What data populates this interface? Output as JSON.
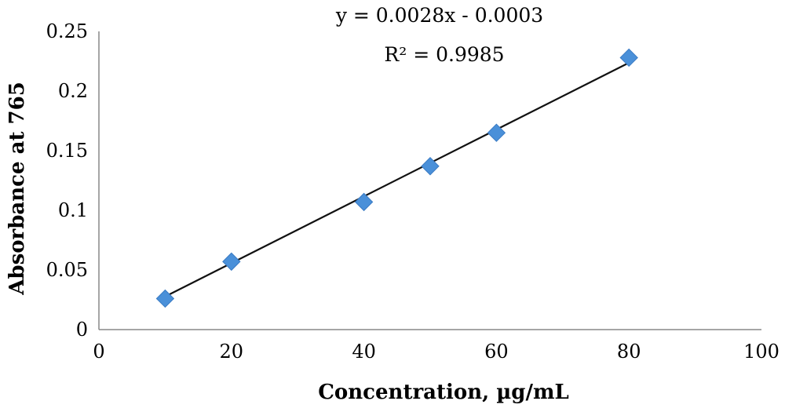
{
  "chart_data": {
    "type": "scatter",
    "title": "",
    "xlabel": "Concentration, µg/mL",
    "ylabel": "Absorbance at 765",
    "xlim": [
      0,
      100
    ],
    "ylim": [
      0,
      0.25
    ],
    "x_ticks": [
      "0",
      "20",
      "40",
      "60",
      "80",
      "100"
    ],
    "y_ticks": [
      "0",
      "0.05",
      "0.1",
      "0.15",
      "0.2",
      "0.25"
    ],
    "grid": false,
    "marker_color": "#4a90d9",
    "series": [
      {
        "x": [
          10,
          20,
          40,
          50,
          60,
          80
        ],
        "y": [
          0.026,
          0.057,
          0.107,
          0.137,
          0.165,
          0.228
        ]
      }
    ],
    "trendline": {
      "slope": 0.0028,
      "intercept": -0.0003,
      "x_range": [
        10,
        80
      ],
      "equation": "y = 0.0028x - 0.0003",
      "r_squared": "R² = 0.9985"
    }
  }
}
